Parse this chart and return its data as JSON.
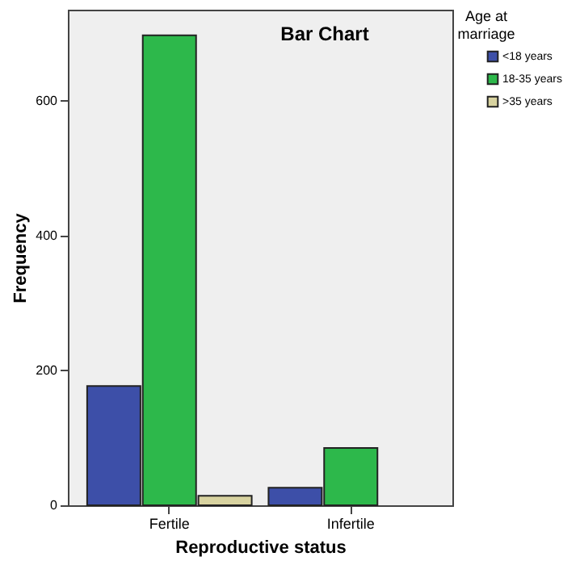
{
  "chart_data": {
    "type": "bar",
    "title": "Bar Chart",
    "xlabel": "Reproductive status",
    "ylabel": "Frequency",
    "legend_title": "Age at marriage",
    "categories": [
      "Fertile",
      "Infertile"
    ],
    "series": [
      {
        "name": "<18 years",
        "color": "#3d4fa8",
        "values": [
          177,
          26
        ]
      },
      {
        "name": "18-35 years",
        "color": "#2db84b",
        "values": [
          697,
          85
        ]
      },
      {
        "name": ">35 years",
        "color": "#d8d3a0",
        "values": [
          14,
          null
        ]
      }
    ],
    "ylim": [
      0,
      735
    ],
    "yticks": [
      0,
      200,
      400,
      600
    ],
    "grid": false,
    "legend": "right"
  }
}
